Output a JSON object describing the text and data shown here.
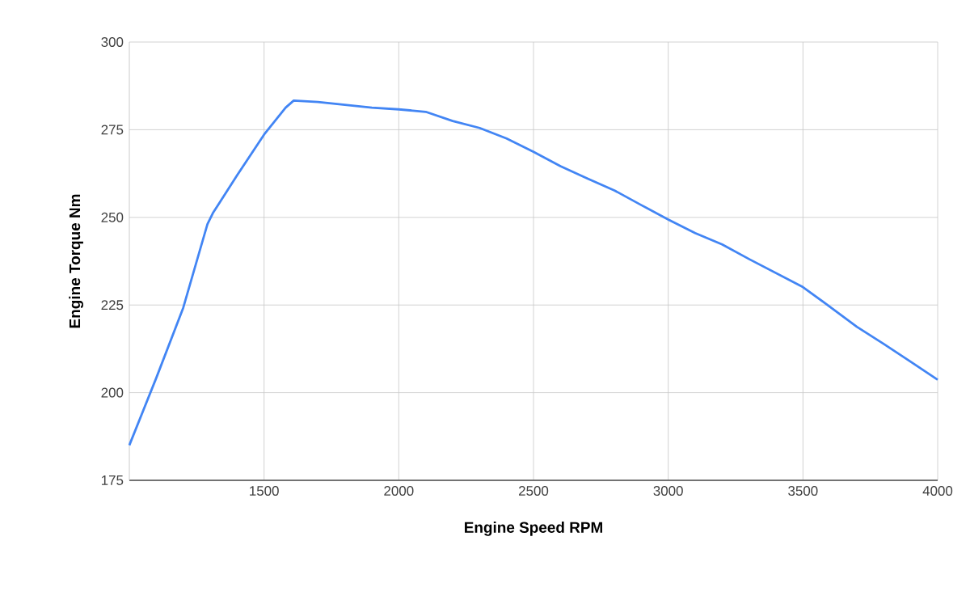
{
  "chart_data": {
    "type": "line",
    "xlabel": "Engine Speed RPM",
    "ylabel": "Engine Torque Nm",
    "x": [
      1000,
      1100,
      1200,
      1290,
      1310,
      1400,
      1500,
      1580,
      1610,
      1700,
      1800,
      1900,
      2000,
      2100,
      2200,
      2300,
      2400,
      2500,
      2600,
      2700,
      2800,
      2900,
      3000,
      3100,
      3200,
      3300,
      3400,
      3500,
      3600,
      3700,
      3800,
      3900,
      4000
    ],
    "series": [
      {
        "color": "#4285f4",
        "values": [
          185,
          204.2,
          224.2,
          248.1,
          251.2,
          262,
          273.6,
          281.3,
          283.3,
          282.9,
          282.1,
          281.3,
          280.8,
          280.1,
          277.5,
          275.5,
          272.5,
          268.7,
          264.6,
          261.1,
          257.7,
          253.5,
          249.4,
          245.5,
          242.3,
          238.1,
          234.1,
          230.1,
          224.5,
          218.8,
          213.9,
          208.8,
          203.7
        ]
      }
    ],
    "xlim": [
      1000,
      4000
    ],
    "xticks": [
      1500,
      2000,
      2500,
      3000,
      3500,
      4000
    ],
    "ylim": [
      175,
      300
    ],
    "yticks": [
      175,
      200,
      225,
      250,
      275,
      300
    ],
    "grid": true,
    "marker": "none",
    "line_style": "solid"
  }
}
